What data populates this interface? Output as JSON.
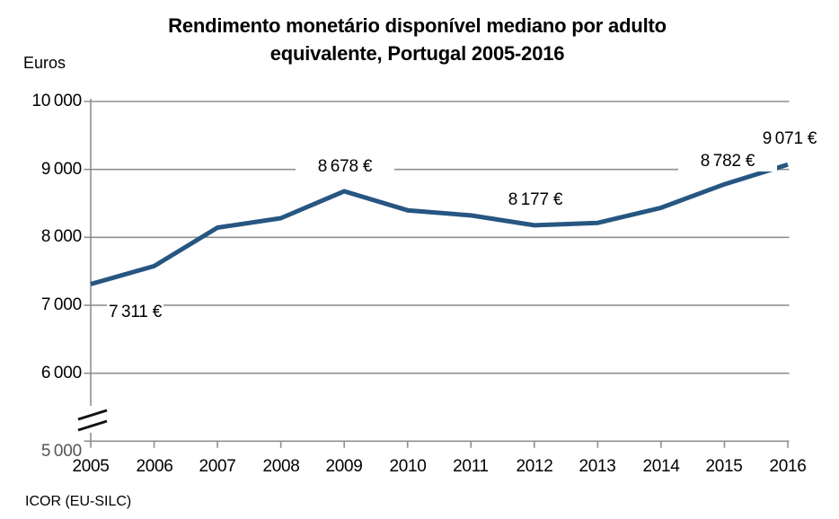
{
  "chart_data": {
    "type": "line",
    "title": "Rendimento monetário disponível mediano por adulto equivalente, Portugal 2005-2016",
    "title_lines": [
      "Rendimento monetário disponível mediano por adulto",
      "equivalente, Portugal 2005-2016"
    ],
    "ylabel": "Euros",
    "xlabel": "",
    "source": "ICOR (EU-SILC)",
    "categories": [
      "2005",
      "2006",
      "2007",
      "2008",
      "2009",
      "2010",
      "2011",
      "2012",
      "2013",
      "2014",
      "2015",
      "2016"
    ],
    "series": [
      {
        "name": "Rendimento monetário disponível mediano por adulto equivalente",
        "values": [
          7311,
          7576,
          8143,
          8282,
          8678,
          8398,
          8323,
          8177,
          8213,
          8435,
          8782,
          9071
        ]
      }
    ],
    "unit": "€",
    "point_labels": [
      {
        "index": 0,
        "year": "2005",
        "text": "7 311 €",
        "placement": "below-right"
      },
      {
        "index": 4,
        "year": "2009",
        "text": "8 678 €",
        "placement": "above"
      },
      {
        "index": 7,
        "year": "2012",
        "text": "8 177 €",
        "placement": "above"
      },
      {
        "index": 10,
        "year": "2015",
        "text": "8 782 €",
        "placement": "above"
      },
      {
        "index": 11,
        "year": "2016",
        "text": "9 071 €",
        "placement": "above"
      }
    ],
    "y_axis": {
      "tick_labels": [
        "10 000",
        "9 000",
        "8 000",
        "7 000",
        "6 000"
      ],
      "tick_values": [
        10000,
        9000,
        8000,
        7000,
        6000
      ],
      "clipped_bottom_tick_label": "5 000",
      "ylim": [
        5000,
        10000
      ],
      "broken_axis": true,
      "grid": true
    },
    "legend": "none",
    "colors": {
      "line": "#265681",
      "grid": "#909090",
      "axis": "#909090",
      "axis_break": "#111111",
      "text": "#000000"
    }
  }
}
